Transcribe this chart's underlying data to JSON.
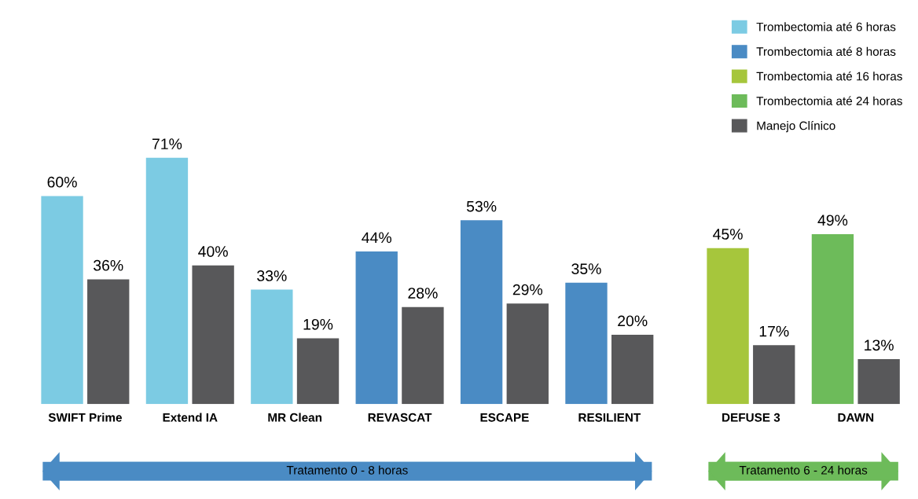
{
  "chart_data": {
    "type": "bar",
    "categories": [
      "SWIFT Prime",
      "Extend IA",
      "MR Clean",
      "REVASCAT",
      "ESCAPE",
      "RESILIENT",
      "DEFUSE 3",
      "DAWN"
    ],
    "series": [
      {
        "name": "Trombectomia até 6 horas",
        "color": "#7ccbe3",
        "values": [
          60,
          71,
          33,
          null,
          null,
          null,
          null,
          null
        ],
        "value_labels": [
          "60%",
          "71%",
          "33%",
          null,
          null,
          null,
          null,
          null
        ]
      },
      {
        "name": "Trombectomia até 8 horas",
        "color": "#4a8bc4",
        "values": [
          null,
          null,
          null,
          44,
          53,
          35,
          null,
          null
        ],
        "value_labels": [
          null,
          null,
          null,
          "44%",
          "53%",
          "35%",
          null,
          null
        ]
      },
      {
        "name": "Trombectomia até 16 horas",
        "color": "#a6c63c",
        "values": [
          null,
          null,
          null,
          null,
          null,
          null,
          45,
          null
        ],
        "value_labels": [
          null,
          null,
          null,
          null,
          null,
          null,
          "45%",
          null
        ]
      },
      {
        "name": "Trombectomia até 24 horas",
        "color": "#6dbb5a",
        "values": [
          null,
          null,
          null,
          null,
          null,
          null,
          null,
          49
        ],
        "value_labels": [
          null,
          null,
          null,
          null,
          null,
          null,
          null,
          "49%"
        ]
      },
      {
        "name": "Manejo Clínico",
        "color": "#58585a",
        "values": [
          36,
          40,
          19,
          28,
          29,
          20,
          17,
          13
        ],
        "value_labels": [
          "36%",
          "40%",
          "19%",
          "28%",
          "29%",
          "20%",
          "17%",
          "13%"
        ]
      }
    ],
    "annotations": [
      "Tratamento 0 - 8 horas",
      "Tratamento 6 - 24 horas"
    ],
    "grid": false,
    "legend": "top right"
  }
}
